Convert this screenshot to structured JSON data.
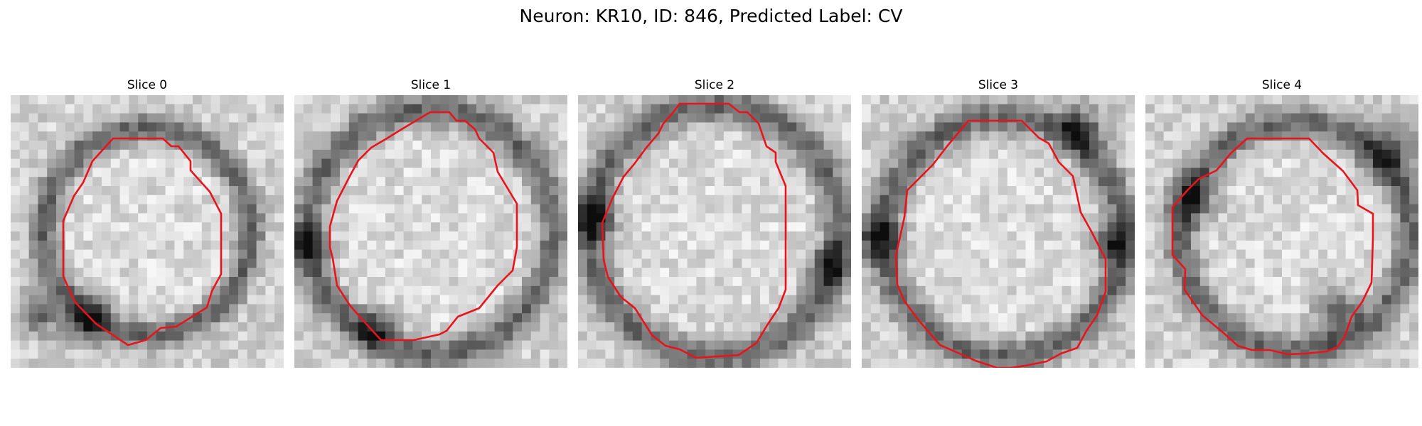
{
  "title": "Neuron: KR10, ID: 846, Predicted Label: CV",
  "panels": [
    {
      "label": "Slice 0"
    },
    {
      "label": "Slice 1"
    },
    {
      "label": "Slice 2"
    },
    {
      "label": "Slice 3"
    },
    {
      "label": "Slice 4"
    }
  ],
  "colors": {
    "contour": "#e8141c",
    "background": "#ffffff"
  }
}
